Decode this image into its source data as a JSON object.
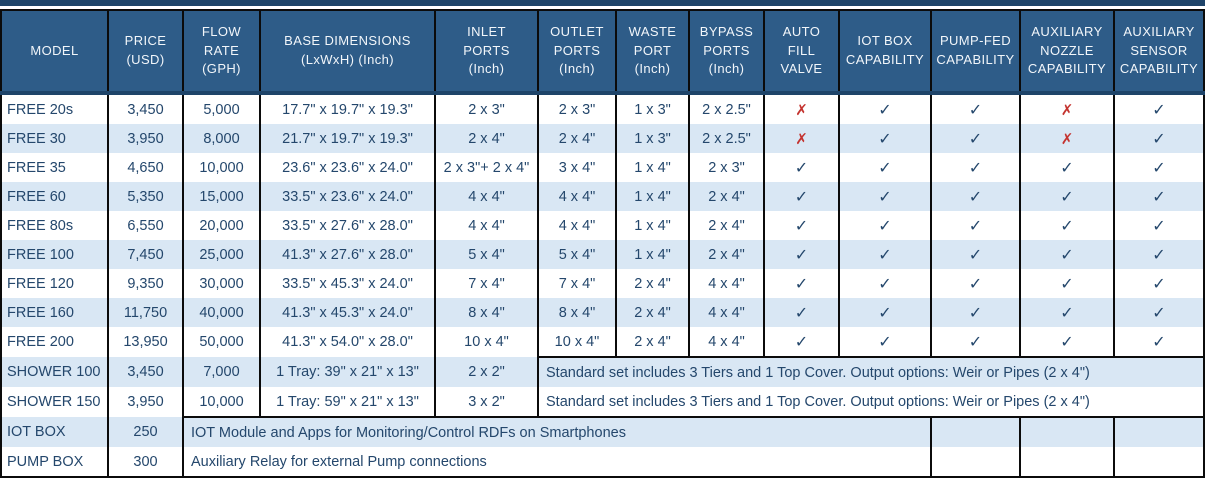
{
  "colors": {
    "header_bg": "#2E5C88",
    "navy_dark": "#1E4469",
    "stripe": "#D9E7F4",
    "text_navy": "#24476C",
    "cross_red": "#C4332F",
    "ink": "#0B0B0B",
    "header_text": "#F2F6FA"
  },
  "symbols": {
    "yes": "✓",
    "no": "✗"
  },
  "table": {
    "columns": [
      {
        "key": "model",
        "label": "MODEL"
      },
      {
        "key": "price",
        "label": "PRICE\n(USD)"
      },
      {
        "key": "flow",
        "label": "FLOW\nRATE\n(GPH)"
      },
      {
        "key": "dims",
        "label": "BASE DIMENSIONS\n(LxWxH) (Inch)"
      },
      {
        "key": "inlet",
        "label": "INLET\nPORTS\n(Inch)"
      },
      {
        "key": "outlet",
        "label": "OUTLET\nPORTS\n(Inch)"
      },
      {
        "key": "waste",
        "label": "WASTE\nPORT\n(Inch)"
      },
      {
        "key": "bypass",
        "label": "BYPASS\nPORTS\n(Inch)"
      },
      {
        "key": "auto_fill",
        "label": "AUTO FILL\nVALVE"
      },
      {
        "key": "iot",
        "label": "IOT BOX\nCAPABILITY"
      },
      {
        "key": "pump_fed",
        "label": "PUMP-FED\nCAPABILITY"
      },
      {
        "key": "aux_nozzle",
        "label": "AUXILIARY\nNOZZLE\nCAPABILITY"
      },
      {
        "key": "aux_sensor",
        "label": "AUXILIARY\nSENSOR\nCAPABILITY"
      }
    ],
    "rows": [
      {
        "type": "standard",
        "model": "FREE 20s",
        "price": "3,450",
        "flow": "5,000",
        "dims": "17.7\" x 19.7\" x 19.3\"",
        "inlet": "2 x 3\"",
        "outlet": "2 x 3\"",
        "waste": "1 x 3\"",
        "bypass": "2 x 2.5\"",
        "auto_fill": "no",
        "iot": "yes",
        "pump_fed": "yes",
        "aux_nozzle": "no",
        "aux_sensor": "yes"
      },
      {
        "type": "standard",
        "model": "FREE 30",
        "price": "3,950",
        "flow": "8,000",
        "dims": "21.7\" x 19.7\" x 19.3\"",
        "inlet": "2 x 4\"",
        "outlet": "2 x 4\"",
        "waste": "1 x 3\"",
        "bypass": "2 x 2.5\"",
        "auto_fill": "no",
        "iot": "yes",
        "pump_fed": "yes",
        "aux_nozzle": "no",
        "aux_sensor": "yes"
      },
      {
        "type": "standard",
        "model": "FREE 35",
        "price": "4,650",
        "flow": "10,000",
        "dims": "23.6\" x 23.6\" x 24.0\"",
        "inlet": "2 x 3\"+ 2 x 4\"",
        "outlet": "3 x 4\"",
        "waste": "1 x 4\"",
        "bypass": "2 x 3\"",
        "auto_fill": "yes",
        "iot": "yes",
        "pump_fed": "yes",
        "aux_nozzle": "yes",
        "aux_sensor": "yes"
      },
      {
        "type": "standard",
        "model": "FREE 60",
        "price": "5,350",
        "flow": "15,000",
        "dims": "33.5\" x 23.6\" x 24.0\"",
        "inlet": "4 x 4\"",
        "outlet": "4 x 4\"",
        "waste": "1 x 4\"",
        "bypass": "2 x 4\"",
        "auto_fill": "yes",
        "iot": "yes",
        "pump_fed": "yes",
        "aux_nozzle": "yes",
        "aux_sensor": "yes"
      },
      {
        "type": "standard",
        "model": "FREE 80s",
        "price": "6,550",
        "flow": "20,000",
        "dims": "33.5\" x 27.6\" x 28.0\"",
        "inlet": "4 x 4\"",
        "outlet": "4 x 4\"",
        "waste": "1 x 4\"",
        "bypass": "2 x 4\"",
        "auto_fill": "yes",
        "iot": "yes",
        "pump_fed": "yes",
        "aux_nozzle": "yes",
        "aux_sensor": "yes"
      },
      {
        "type": "standard",
        "model": "FREE 100",
        "price": "7,450",
        "flow": "25,000",
        "dims": "41.3\" x 27.6\" x 28.0\"",
        "inlet": "5 x 4\"",
        "outlet": "5 x 4\"",
        "waste": "1 x 4\"",
        "bypass": "2 x 4\"",
        "auto_fill": "yes",
        "iot": "yes",
        "pump_fed": "yes",
        "aux_nozzle": "yes",
        "aux_sensor": "yes"
      },
      {
        "type": "standard",
        "model": "FREE 120",
        "price": "9,350",
        "flow": "30,000",
        "dims": "33.5\" x 45.3\" x 24.0\"",
        "inlet": "7 x 4\"",
        "outlet": "7 x 4\"",
        "waste": "2 x 4\"",
        "bypass": "4 x 4\"",
        "auto_fill": "yes",
        "iot": "yes",
        "pump_fed": "yes",
        "aux_nozzle": "yes",
        "aux_sensor": "yes"
      },
      {
        "type": "standard",
        "model": "FREE 160",
        "price": "11,750",
        "flow": "40,000",
        "dims": "41.3\" x 45.3\" x 24.0\"",
        "inlet": "8 x 4\"",
        "outlet": "8 x 4\"",
        "waste": "2 x 4\"",
        "bypass": "4 x 4\"",
        "auto_fill": "yes",
        "iot": "yes",
        "pump_fed": "yes",
        "aux_nozzle": "yes",
        "aux_sensor": "yes"
      },
      {
        "type": "standard",
        "model": "FREE 200",
        "price": "13,950",
        "flow": "50,000",
        "dims": "41.3\" x 54.0\" x 28.0\"",
        "inlet": "10 x 4\"",
        "outlet": "10 x 4\"",
        "waste": "2 x 4\"",
        "bypass": "4 x 4\"",
        "auto_fill": "yes",
        "iot": "yes",
        "pump_fed": "yes",
        "aux_nozzle": "yes",
        "aux_sensor": "yes"
      },
      {
        "type": "shower",
        "model": "SHOWER 100",
        "price": "3,450",
        "flow": "7,000",
        "dims": "1 Tray: 39\" x 21\" x 13\"",
        "inlet": "2 x 2\"",
        "note": "Standard set includes 3 Tiers and 1 Top Cover. Output options: Weir or Pipes (2 x 4\")"
      },
      {
        "type": "shower",
        "model": "SHOWER 150",
        "price": "3,950",
        "flow": "10,000",
        "dims": "1 Tray: 59\" x 21\" x 13\"",
        "inlet": "3 x 2\"",
        "note": "Standard set includes 3 Tiers and 1 Top Cover. Output options: Weir or Pipes (2 x 4\")"
      },
      {
        "type": "accessory",
        "model": "IOT BOX",
        "price": "250",
        "note": "IOT Module and Apps for Monitoring/Control RDFs on Smartphones"
      },
      {
        "type": "accessory",
        "model": "PUMP BOX",
        "price": "300",
        "note": "Auxiliary Relay for external Pump connections"
      }
    ]
  }
}
